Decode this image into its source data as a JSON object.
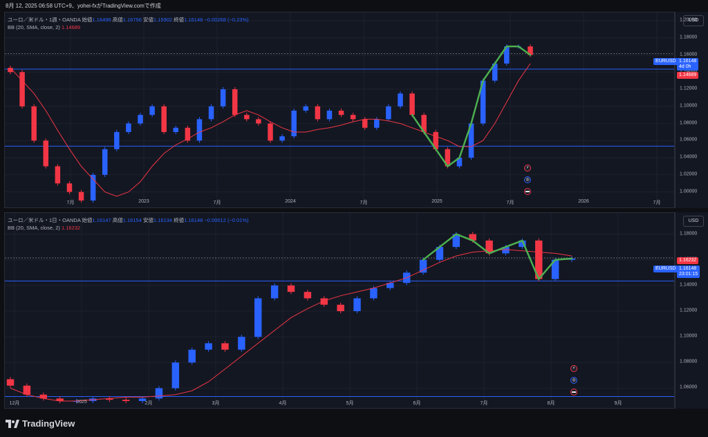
{
  "header": {
    "text": "8月 12, 2025 06:58 UTC+9、yohei-fxがTradingView.comで作成"
  },
  "brand": {
    "name": "TradingView"
  },
  "chart_data": [
    {
      "type": "candlestick",
      "symbol_label": "ユーロ／米ドル・1週・OANDA",
      "ohlc": {
        "open_label": "始値",
        "open": "1.16496",
        "high_label": "高値",
        "high": "1.16756",
        "low_label": "安値",
        "low": "1.15902",
        "close_label": "終値",
        "close": "1.16148",
        "change": "−0.00268 (−0.23%)"
      },
      "indicator": {
        "label": "BB (20, SMA, close, 2)",
        "value": "1.14689"
      },
      "currency": "USD",
      "ylim": [
        0.99,
        1.2
      ],
      "y_ticks": [
        "1.20000",
        "1.18000",
        "1.16000",
        "1.14000",
        "1.12000",
        "1.10000",
        "1.08000",
        "1.06000",
        "1.04000",
        "1.02000",
        "1.00000"
      ],
      "x_ticks": [
        "7月",
        "2023",
        "7月",
        "2024",
        "7月",
        "2025",
        "7月",
        "2026",
        "7月"
      ],
      "last_price": {
        "symbol": "EURUSD",
        "price": "1.16148",
        "countdown": "4d 0h"
      },
      "bb_tag": "1.14689",
      "hlines": [
        1.1435,
        1.0535
      ],
      "bb_values": [
        1.145,
        1.13,
        1.115,
        1.095,
        1.072,
        1.05,
        1.03,
        1.015,
        1.0,
        0.995,
        1.0,
        1.012,
        1.03,
        1.045,
        1.055,
        1.062,
        1.07,
        1.075,
        1.082,
        1.09,
        1.095,
        1.09,
        1.082,
        1.075,
        1.07,
        1.07,
        1.073,
        1.075,
        1.078,
        1.082,
        1.085,
        1.085,
        1.083,
        1.08,
        1.075,
        1.07,
        1.065,
        1.06,
        1.053,
        1.053,
        1.06,
        1.08,
        1.105,
        1.13,
        1.15
      ],
      "closes": [
        1.14,
        1.1,
        1.06,
        1.03,
        1.01,
        1.0,
        0.99,
        1.02,
        1.05,
        1.07,
        1.08,
        1.09,
        1.1,
        1.07,
        1.075,
        1.06,
        1.085,
        1.1,
        1.12,
        1.09,
        1.085,
        1.08,
        1.06,
        1.065,
        1.095,
        1.1,
        1.085,
        1.095,
        1.09,
        1.085,
        1.075,
        1.085,
        1.1,
        1.115,
        1.09,
        1.07,
        1.05,
        1.03,
        1.04,
        1.08,
        1.13,
        1.15,
        1.17,
        1.17,
        1.16
      ]
    },
    {
      "type": "candlestick",
      "symbol_label": "ユーロ／米ドル・1日・OANDA",
      "ohlc": {
        "open_label": "始値",
        "open": "1.16147",
        "high_label": "高値",
        "high": "1.16154",
        "low_label": "安値",
        "low": "1.16134",
        "close_label": "終値",
        "close": "1.16148",
        "change": "−0.00012 (−0.01%)"
      },
      "indicator": {
        "label": "BB (20, SMA, close, 2)",
        "value": "1.16232"
      },
      "currency": "USD",
      "ylim": [
        1.05,
        1.19
      ],
      "y_ticks": [
        "1.18000",
        "1.16000",
        "1.14000",
        "1.12000",
        "1.10000",
        "1.08000",
        "1.06000"
      ],
      "x_ticks": [
        "12月",
        "2025",
        "2月",
        "3月",
        "4月",
        "5月",
        "6月",
        "7月",
        "8月",
        "9月"
      ],
      "last_price": {
        "symbol": "EURUSD",
        "price": "1.16148",
        "countdown": "23:01:15"
      },
      "bb_tag": "1.16232",
      "hlines": [
        1.1435,
        1.0535
      ],
      "bb_values": [
        1.06,
        1.055,
        1.052,
        1.05,
        1.05,
        1.051,
        1.052,
        1.053,
        1.053,
        1.054,
        1.055,
        1.058,
        1.065,
        1.075,
        1.085,
        1.095,
        1.105,
        1.115,
        1.122,
        1.128,
        1.132,
        1.135,
        1.138,
        1.142,
        1.146,
        1.152,
        1.158,
        1.163,
        1.166,
        1.167,
        1.168,
        1.167,
        1.166,
        1.165,
        1.163
      ],
      "closes": [
        1.062,
        1.055,
        1.052,
        1.05,
        1.05,
        1.052,
        1.051,
        1.05,
        1.052,
        1.06,
        1.08,
        1.09,
        1.095,
        1.09,
        1.1,
        1.13,
        1.14,
        1.135,
        1.13,
        1.125,
        1.12,
        1.13,
        1.138,
        1.142,
        1.15,
        1.16,
        1.17,
        1.18,
        1.175,
        1.165,
        1.17,
        1.175,
        1.145,
        1.16,
        1.161
      ]
    }
  ]
}
